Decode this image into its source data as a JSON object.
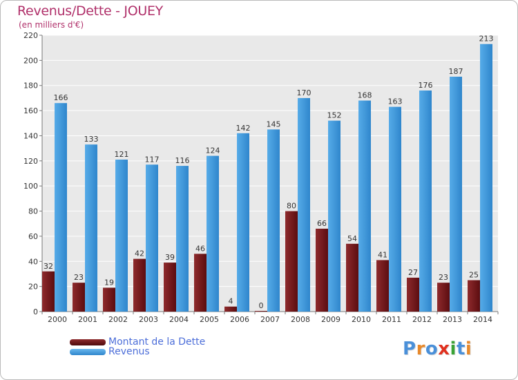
{
  "chart_data": {
    "type": "bar",
    "title": "Revenus/Dette - JOUEY",
    "subtitle": "(en milliers d'€)",
    "categories": [
      "2000",
      "2001",
      "2002",
      "2003",
      "2004",
      "2005",
      "2006",
      "2007",
      "2008",
      "2009",
      "2010",
      "2011",
      "2012",
      "2013",
      "2014"
    ],
    "series": [
      {
        "name": "Montant de la Dette",
        "values": [
          32,
          23,
          19,
          42,
          39,
          46,
          4,
          0,
          80,
          66,
          54,
          41,
          27,
          23,
          25
        ],
        "color": "#7a1a1c"
      },
      {
        "name": "Revenus",
        "values": [
          166,
          133,
          121,
          117,
          116,
          124,
          142,
          145,
          170,
          152,
          168,
          163,
          176,
          187,
          213
        ],
        "color": "#3f97dc"
      }
    ],
    "ylim": [
      0,
      220
    ],
    "yticks": [
      0,
      20,
      40,
      60,
      80,
      100,
      120,
      140,
      160,
      180,
      200,
      220
    ],
    "grid": true,
    "legend_position": "bottom-left",
    "xlabel": "",
    "ylabel": ""
  },
  "logo": {
    "text": "Proxiti",
    "letter_colors": [
      "#4a90d9",
      "#e8892b",
      "#4a90d9",
      "#e0301e",
      "#3aa336",
      "#4a90d9",
      "#e8892b"
    ]
  }
}
